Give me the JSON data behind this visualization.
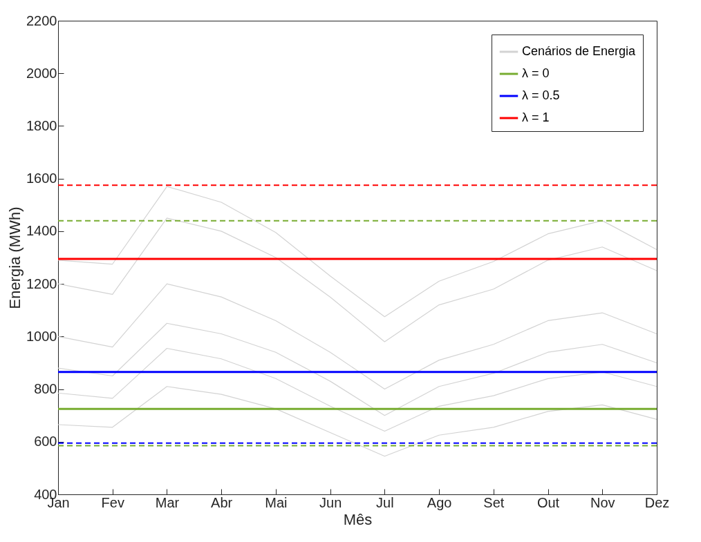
{
  "chart_data": {
    "type": "line",
    "xlabel": "Mês",
    "ylabel": "Energia (MWh)",
    "categories": [
      "Jan",
      "Fev",
      "Mar",
      "Abr",
      "Mai",
      "Jun",
      "Jul",
      "Ago",
      "Set",
      "Out",
      "Nov",
      "Dez"
    ],
    "series": [
      {
        "name": "Cenários de Energia",
        "color": "#d3d3d3",
        "values": [
          1290,
          1275,
          1570,
          1510,
          1395,
          1230,
          1075,
          1210,
          1285,
          1390,
          1440,
          1330
        ]
      },
      {
        "color": "#d3d3d3",
        "values": [
          1200,
          1160,
          1450,
          1400,
          1300,
          1150,
          980,
          1120,
          1180,
          1290,
          1340,
          1250
        ]
      },
      {
        "color": "#d3d3d3",
        "values": [
          1000,
          960,
          1200,
          1150,
          1060,
          940,
          800,
          910,
          970,
          1060,
          1090,
          1010
        ]
      },
      {
        "color": "#d3d3d3",
        "values": [
          880,
          850,
          1050,
          1010,
          940,
          830,
          700,
          810,
          860,
          940,
          970,
          900
        ]
      },
      {
        "color": "#d3d3d3",
        "values": [
          785,
          765,
          955,
          915,
          840,
          735,
          640,
          735,
          775,
          840,
          865,
          810
        ]
      },
      {
        "color": "#d3d3d3",
        "values": [
          665,
          655,
          810,
          780,
          725,
          635,
          545,
          625,
          655,
          715,
          740,
          685
        ]
      },
      {
        "name": "λ = 0",
        "color": "#77ac30",
        "values": [
          725,
          725,
          725,
          725,
          725,
          725,
          725,
          725,
          725,
          725,
          725,
          725
        ]
      },
      {
        "name": "λ = 0.5",
        "color": "#0000ff",
        "values": [
          865,
          865,
          865,
          865,
          865,
          865,
          865,
          865,
          865,
          865,
          865,
          865
        ]
      },
      {
        "name": "λ = 1",
        "color": "#ff0000",
        "values": [
          1295,
          1295,
          1295,
          1295,
          1295,
          1295,
          1295,
          1295,
          1295,
          1295,
          1295,
          1295
        ]
      }
    ],
    "ref_lines": [
      {
        "axis": "y",
        "value": 1575,
        "color": "#ff0000",
        "line_style": "dashed"
      },
      {
        "axis": "y",
        "value": 1440,
        "color": "#77ac30",
        "line_style": "dashed"
      },
      {
        "axis": "y",
        "value": 595,
        "color": "#0000ff",
        "line_style": "dashed"
      },
      {
        "axis": "y",
        "value": 585,
        "color": "#77ac30",
        "line_style": "dashed"
      }
    ],
    "ylim": [
      400,
      2200
    ],
    "yticks": [
      400,
      600,
      800,
      1000,
      1200,
      1400,
      1600,
      1800,
      2000,
      2200
    ],
    "grid": false,
    "legend": "top right",
    "marker": "none",
    "line_style": "solid"
  }
}
